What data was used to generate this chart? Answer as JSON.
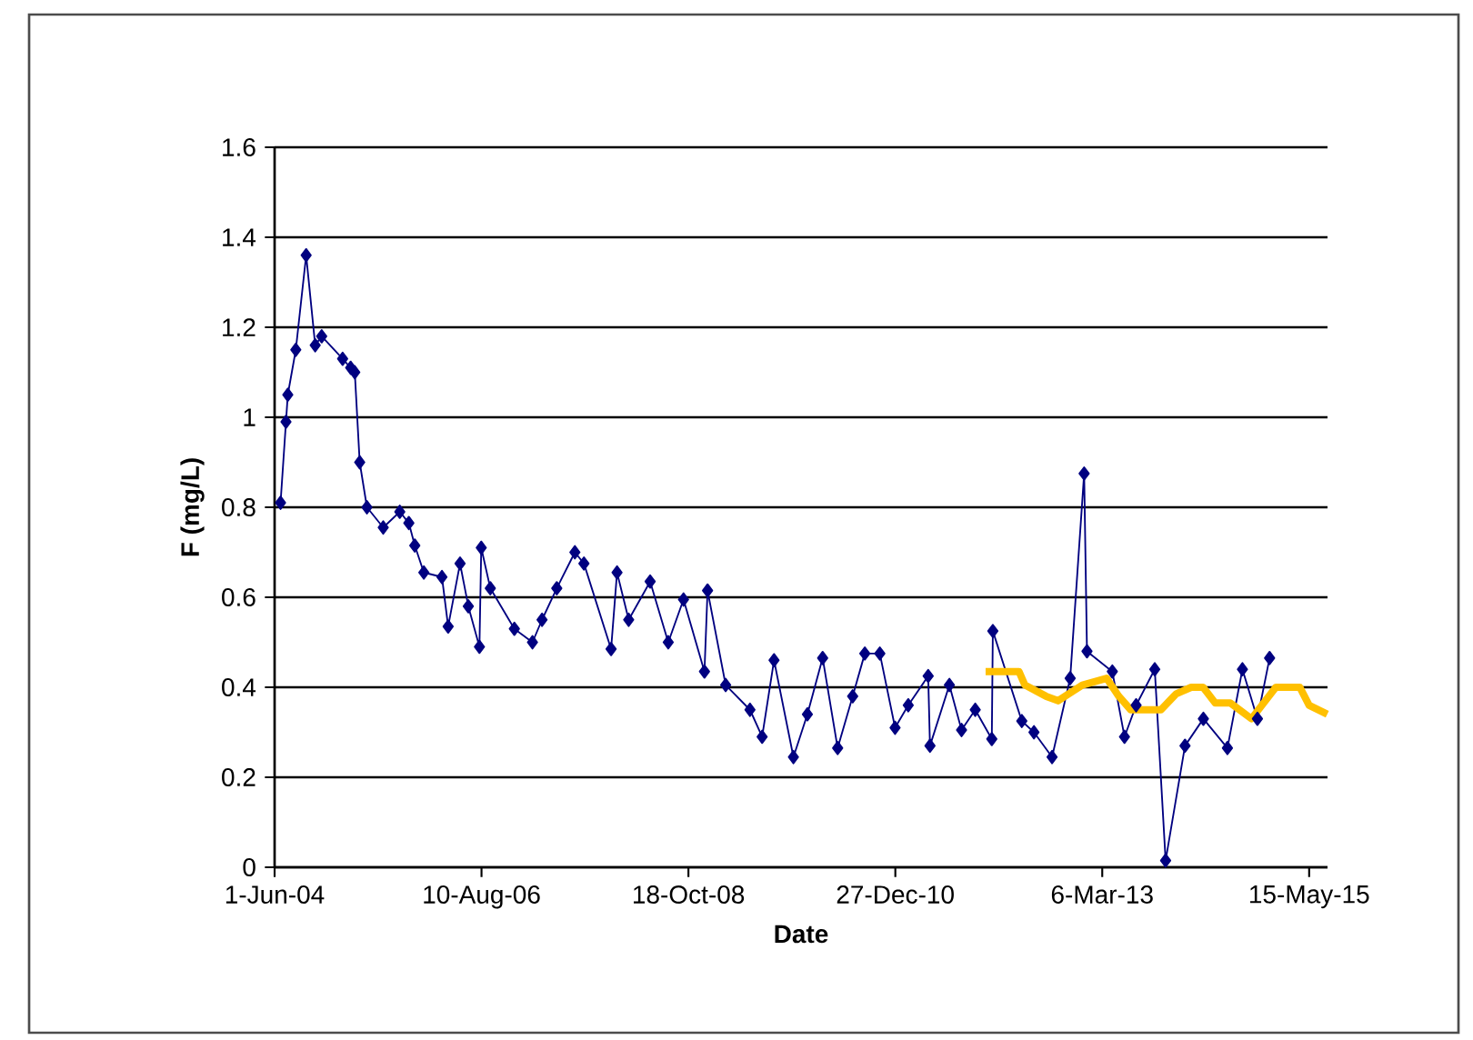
{
  "chart_data": {
    "type": "line",
    "xlabel": "Date",
    "ylabel": "F (mg/L)",
    "xlim": [
      "2004-06-01",
      "2015-07-25"
    ],
    "xticks": [
      {
        "value": "2004-06-01",
        "label": "1-Jun-04"
      },
      {
        "value": "2006-08-10",
        "label": "10-Aug-06"
      },
      {
        "value": "2008-10-18",
        "label": "18-Oct-08"
      },
      {
        "value": "2010-12-27",
        "label": "27-Dec-10"
      },
      {
        "value": "2013-03-06",
        "label": "6-Mar-13"
      },
      {
        "value": "2015-05-15",
        "label": "15-May-15"
      }
    ],
    "ylim": [
      0,
      1.6
    ],
    "yticks": [
      0,
      0.2,
      0.4,
      0.6,
      0.8,
      1,
      1.2,
      1.4,
      1.6
    ],
    "grid": "y",
    "series": [
      {
        "color": "#000080",
        "marker": "diamond",
        "line_style": "solid",
        "x": [
          "2004-06-24",
          "2004-07-15",
          "2004-07-22",
          "2004-08-22",
          "2004-10-01",
          "2004-11-05",
          "2004-11-30",
          "2005-02-19",
          "2005-03-22",
          "2005-04-07",
          "2005-04-26",
          "2005-05-24",
          "2005-07-26",
          "2005-09-28",
          "2005-11-02",
          "2005-11-25",
          "2005-12-30",
          "2006-03-10",
          "2006-04-03",
          "2006-05-19",
          "2006-06-20",
          "2006-08-02",
          "2006-08-09",
          "2006-09-13",
          "2006-12-15",
          "2007-02-23",
          "2007-04-01",
          "2007-05-28",
          "2007-08-06",
          "2007-09-10",
          "2007-12-24",
          "2008-01-16",
          "2008-03-01",
          "2008-05-23",
          "2008-08-01",
          "2008-09-29",
          "2008-12-19",
          "2008-12-31",
          "2009-03-11",
          "2009-06-13",
          "2009-07-30",
          "2009-09-14",
          "2009-11-28",
          "2010-01-21",
          "2010-03-21",
          "2010-05-18",
          "2010-07-15",
          "2010-08-31",
          "2010-10-28",
          "2010-12-26",
          "2011-02-15",
          "2011-05-03",
          "2011-05-10",
          "2011-07-24",
          "2011-09-09",
          "2011-11-01",
          "2012-01-04",
          "2012-01-08",
          "2012-04-29",
          "2012-06-15",
          "2012-08-24",
          "2012-11-02",
          "2012-12-26",
          "2013-01-06",
          "2013-04-14",
          "2013-05-31",
          "2013-07-15",
          "2013-09-25",
          "2013-11-06",
          "2014-01-20",
          "2014-04-01",
          "2014-07-03",
          "2014-08-30",
          "2014-10-27",
          "2014-12-13"
        ],
        "values": [
          0.81,
          0.99,
          1.05,
          1.15,
          1.36,
          1.16,
          1.18,
          1.13,
          1.11,
          1.1,
          0.9,
          0.8,
          0.755,
          0.79,
          0.765,
          0.715,
          0.655,
          0.645,
          0.535,
          0.675,
          0.58,
          0.49,
          0.71,
          0.62,
          0.53,
          0.5,
          0.55,
          0.62,
          0.7,
          0.675,
          0.485,
          0.655,
          0.55,
          0.635,
          0.5,
          0.595,
          0.435,
          0.615,
          0.405,
          0.35,
          0.29,
          0.46,
          0.245,
          0.34,
          0.465,
          0.265,
          0.38,
          0.475,
          0.475,
          0.31,
          0.36,
          0.425,
          0.27,
          0.405,
          0.305,
          0.35,
          0.285,
          0.525,
          0.325,
          0.3,
          0.245,
          0.42,
          0.875,
          0.48,
          0.435,
          0.29,
          0.36,
          0.44,
          0.015,
          0.27,
          0.33,
          0.265,
          0.44,
          0.33,
          0.465
        ]
      },
      {
        "color": "#ffc000",
        "marker": "none",
        "line_style": "solid",
        "x": [
          "2011-12-11",
          "2012-04-18",
          "2012-05-11",
          "2012-08-01",
          "2012-09-16",
          "2012-12-19",
          "2013-03-23",
          "2013-05-09",
          "2013-06-24",
          "2013-10-19",
          "2013-12-16",
          "2014-02-13",
          "2014-03-31",
          "2014-05-17",
          "2014-07-14",
          "2014-10-04",
          "2015-01-06",
          "2015-04-09",
          "2015-05-15",
          "2015-07-24"
        ],
        "values": [
          0.435,
          0.435,
          0.405,
          0.38,
          0.37,
          0.405,
          0.42,
          0.38,
          0.35,
          0.35,
          0.385,
          0.4,
          0.4,
          0.365,
          0.365,
          0.33,
          0.4,
          0.4,
          0.36,
          0.34
        ]
      }
    ]
  }
}
